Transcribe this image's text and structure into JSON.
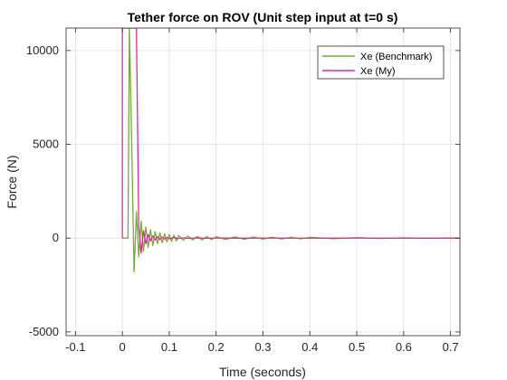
{
  "chart_data": {
    "type": "line",
    "title": "Tether force on ROV (Unit step input at t=0 s)",
    "xlabel": "Time (seconds)",
    "ylabel": "Force (N)",
    "xlim": [
      -0.12,
      0.72
    ],
    "ylim": [
      -5200,
      11200
    ],
    "xticks": [
      -0.1,
      0,
      0.1,
      0.2,
      0.3,
      0.4,
      0.5,
      0.6,
      0.7
    ],
    "xtick_labels": [
      "-0.1",
      "0",
      "0.1",
      "0.2",
      "0.3",
      "0.4",
      "0.5",
      "0.6",
      "0.7"
    ],
    "yticks": [
      -5000,
      0,
      5000,
      10000
    ],
    "ytick_labels": [
      "-5000",
      "0",
      "5000",
      "10000"
    ],
    "grid": true,
    "legend_position": "top-right",
    "series": [
      {
        "name": "Xe (Benchmark)",
        "color": "#77ac30",
        "x": [
          0,
          0.012,
          0.015,
          0.02,
          0.025,
          0.03,
          0.035,
          0.04,
          0.045,
          0.05,
          0.055,
          0.06,
          0.065,
          0.07,
          0.075,
          0.08,
          0.085,
          0.09,
          0.095,
          0.1,
          0.105,
          0.11,
          0.115,
          0.12,
          0.13,
          0.14,
          0.15,
          0.16,
          0.17,
          0.18,
          0.19,
          0.2,
          0.22,
          0.24,
          0.26,
          0.28,
          0.3,
          0.32,
          0.34,
          0.36,
          0.38,
          0.4,
          0.45,
          0.5,
          0.55,
          0.6,
          0.65,
          0.7,
          0.72
        ],
        "y": [
          0,
          0,
          11200,
          5000,
          -1800,
          1400,
          -1000,
          900,
          -700,
          600,
          -500,
          450,
          -400,
          350,
          -300,
          280,
          -250,
          230,
          -200,
          190,
          -170,
          160,
          -150,
          140,
          -120,
          110,
          -100,
          95,
          -90,
          85,
          -80,
          75,
          -70,
          65,
          -60,
          55,
          -50,
          48,
          -45,
          42,
          -40,
          38,
          -30,
          25,
          -20,
          15,
          -10,
          8,
          0
        ]
      },
      {
        "name": "Xe (My)",
        "color": "#e6269a",
        "x": [
          0,
          0,
          0.001,
          0.03,
          0.035,
          0.04,
          0.045,
          0.05,
          0.055,
          0.06,
          0.065,
          0.07,
          0.075,
          0.08,
          0.085,
          0.09,
          0.095,
          0.1,
          0.11,
          0.12,
          0.13,
          0.14,
          0.16,
          0.18,
          0.2,
          0.25,
          0.3,
          0.4,
          0.5,
          0.6,
          0.7,
          0.72
        ],
        "y": [
          0,
          11200,
          11200,
          11200,
          600,
          -800,
          400,
          -300,
          200,
          -150,
          120,
          -100,
          80,
          -70,
          60,
          -50,
          40,
          -35,
          30,
          -25,
          20,
          -15,
          12,
          -10,
          8,
          -5,
          4,
          -3,
          2,
          -1,
          0,
          0
        ]
      }
    ]
  }
}
